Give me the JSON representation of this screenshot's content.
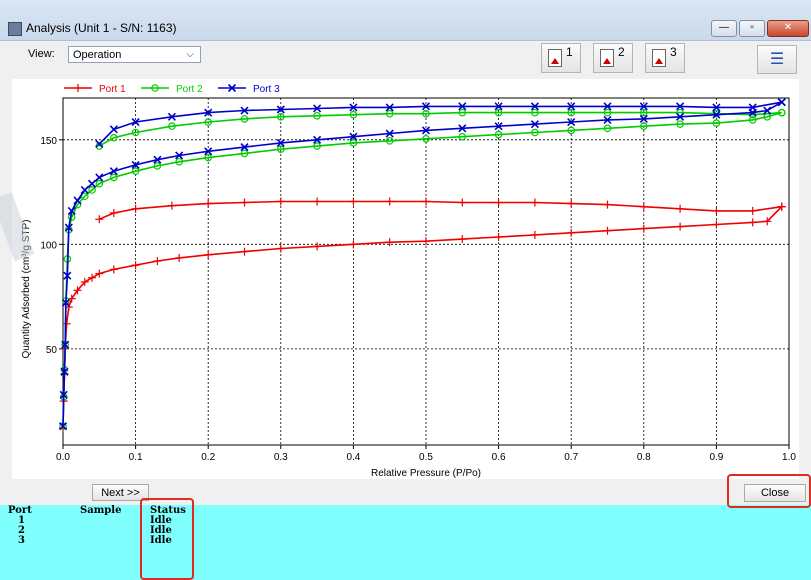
{
  "window": {
    "title": "Analysis (Unit 1 - S/N: 1163)"
  },
  "toolbar": {
    "view_label": "View:",
    "view_value": "Operation",
    "report_buttons": [
      "1",
      "2",
      "3"
    ]
  },
  "buttons": {
    "next": "Next >>",
    "close": "Close"
  },
  "status_table": {
    "headers": {
      "port": "Port",
      "sample": "Sample",
      "status": "Status"
    },
    "rows": [
      {
        "port": "1",
        "sample": "",
        "status": "Idle"
      },
      {
        "port": "2",
        "sample": "",
        "status": "Idle"
      },
      {
        "port": "3",
        "sample": "",
        "status": "Idle"
      }
    ]
  },
  "chart_data": {
    "type": "line",
    "xlabel": "Relative Pressure (P/Po)",
    "ylabel": "Quantity Adsorbed (cm³/g STP)",
    "xlim": [
      0,
      1.0
    ],
    "ylim": [
      4,
      170
    ],
    "xticks": [
      "0.0",
      "0.1",
      "0.2",
      "0.3",
      "0.4",
      "0.5",
      "0.6",
      "0.7",
      "0.8",
      "0.9",
      "1.0"
    ],
    "yticks": [
      50,
      100,
      150
    ],
    "grid": true,
    "legend": "top-left",
    "series": [
      {
        "name": "Port 1",
        "color": "#ee0000",
        "marker": "plus",
        "adsorption": [
          [
            0.0,
            12
          ],
          [
            0.001,
            25
          ],
          [
            0.002,
            38
          ],
          [
            0.003,
            50
          ],
          [
            0.005,
            62
          ],
          [
            0.008,
            70
          ],
          [
            0.012,
            74
          ],
          [
            0.02,
            78
          ],
          [
            0.03,
            82
          ],
          [
            0.04,
            84
          ],
          [
            0.05,
            86
          ],
          [
            0.07,
            88
          ],
          [
            0.1,
            90
          ],
          [
            0.13,
            92
          ],
          [
            0.16,
            93.5
          ],
          [
            0.2,
            95
          ],
          [
            0.25,
            96.5
          ],
          [
            0.3,
            98
          ],
          [
            0.35,
            99
          ],
          [
            0.4,
            100
          ],
          [
            0.45,
            101
          ],
          [
            0.5,
            101.5
          ],
          [
            0.55,
            102.5
          ],
          [
            0.6,
            103.5
          ],
          [
            0.65,
            104.5
          ],
          [
            0.7,
            105.5
          ],
          [
            0.75,
            106.5
          ],
          [
            0.8,
            107.5
          ],
          [
            0.85,
            108.5
          ],
          [
            0.9,
            109.5
          ],
          [
            0.95,
            110.5
          ],
          [
            0.97,
            111
          ],
          [
            0.99,
            118
          ]
        ],
        "desorption": [
          [
            0.99,
            118
          ],
          [
            0.95,
            116
          ],
          [
            0.9,
            116
          ],
          [
            0.85,
            117
          ],
          [
            0.8,
            118
          ],
          [
            0.75,
            119
          ],
          [
            0.7,
            119.5
          ],
          [
            0.65,
            120
          ],
          [
            0.6,
            120
          ],
          [
            0.55,
            120
          ],
          [
            0.5,
            120.5
          ],
          [
            0.45,
            120.5
          ],
          [
            0.4,
            120.5
          ],
          [
            0.35,
            120.5
          ],
          [
            0.3,
            120.5
          ],
          [
            0.25,
            120
          ],
          [
            0.2,
            119.5
          ],
          [
            0.15,
            118.5
          ],
          [
            0.1,
            117
          ],
          [
            0.07,
            115
          ],
          [
            0.05,
            112
          ]
        ]
      },
      {
        "name": "Port 2",
        "color": "#00cc00",
        "marker": "circle",
        "adsorption": [
          [
            0.0,
            13
          ],
          [
            0.001,
            27
          ],
          [
            0.002,
            40
          ],
          [
            0.003,
            52
          ],
          [
            0.004,
            73
          ],
          [
            0.006,
            93
          ],
          [
            0.008,
            107
          ],
          [
            0.012,
            113
          ],
          [
            0.02,
            119
          ],
          [
            0.03,
            123
          ],
          [
            0.04,
            126
          ],
          [
            0.05,
            129
          ],
          [
            0.07,
            132
          ],
          [
            0.1,
            135
          ],
          [
            0.13,
            137.5
          ],
          [
            0.16,
            139.5
          ],
          [
            0.2,
            141.5
          ],
          [
            0.25,
            143.5
          ],
          [
            0.3,
            145.5
          ],
          [
            0.35,
            147
          ],
          [
            0.4,
            148.5
          ],
          [
            0.45,
            149.5
          ],
          [
            0.5,
            150.5
          ],
          [
            0.55,
            151.5
          ],
          [
            0.6,
            152.5
          ],
          [
            0.65,
            153.5
          ],
          [
            0.7,
            154.5
          ],
          [
            0.75,
            155.5
          ],
          [
            0.8,
            156.5
          ],
          [
            0.85,
            157.5
          ],
          [
            0.9,
            158
          ],
          [
            0.95,
            159.5
          ],
          [
            0.97,
            161
          ],
          [
            0.99,
            163
          ]
        ],
        "desorption": [
          [
            0.99,
            163
          ],
          [
            0.95,
            162
          ],
          [
            0.9,
            162.5
          ],
          [
            0.85,
            163
          ],
          [
            0.8,
            163
          ],
          [
            0.75,
            163
          ],
          [
            0.7,
            163
          ],
          [
            0.65,
            163
          ],
          [
            0.6,
            163
          ],
          [
            0.55,
            163
          ],
          [
            0.5,
            162.5
          ],
          [
            0.45,
            162.5
          ],
          [
            0.4,
            162
          ],
          [
            0.35,
            161.5
          ],
          [
            0.3,
            161
          ],
          [
            0.25,
            160
          ],
          [
            0.2,
            158.5
          ],
          [
            0.15,
            156.5
          ],
          [
            0.1,
            153.5
          ],
          [
            0.07,
            151
          ],
          [
            0.05,
            147
          ]
        ]
      },
      {
        "name": "Port 3",
        "color": "#0000cc",
        "marker": "x",
        "adsorption": [
          [
            0.0,
            13
          ],
          [
            0.001,
            28
          ],
          [
            0.002,
            39
          ],
          [
            0.003,
            52
          ],
          [
            0.004,
            72
          ],
          [
            0.006,
            85
          ],
          [
            0.008,
            108
          ],
          [
            0.012,
            116
          ],
          [
            0.02,
            121
          ],
          [
            0.03,
            126
          ],
          [
            0.04,
            129
          ],
          [
            0.05,
            132
          ],
          [
            0.07,
            135
          ],
          [
            0.1,
            138
          ],
          [
            0.13,
            140.5
          ],
          [
            0.16,
            142.5
          ],
          [
            0.2,
            144.5
          ],
          [
            0.25,
            146.5
          ],
          [
            0.3,
            148.5
          ],
          [
            0.35,
            150
          ],
          [
            0.4,
            151.5
          ],
          [
            0.45,
            153
          ],
          [
            0.5,
            154.5
          ],
          [
            0.55,
            155.5
          ],
          [
            0.6,
            156.5
          ],
          [
            0.65,
            157.5
          ],
          [
            0.7,
            158.5
          ],
          [
            0.75,
            159.5
          ],
          [
            0.8,
            160
          ],
          [
            0.85,
            161
          ],
          [
            0.9,
            162
          ],
          [
            0.95,
            163
          ],
          [
            0.97,
            164
          ],
          [
            0.99,
            168
          ]
        ],
        "desorption": [
          [
            0.99,
            168
          ],
          [
            0.95,
            165.5
          ],
          [
            0.9,
            165.5
          ],
          [
            0.85,
            166
          ],
          [
            0.8,
            166
          ],
          [
            0.75,
            166
          ],
          [
            0.7,
            166
          ],
          [
            0.65,
            166
          ],
          [
            0.6,
            166
          ],
          [
            0.55,
            166
          ],
          [
            0.5,
            166
          ],
          [
            0.45,
            165.5
          ],
          [
            0.4,
            165.5
          ],
          [
            0.35,
            165
          ],
          [
            0.3,
            164.5
          ],
          [
            0.25,
            164
          ],
          [
            0.2,
            163
          ],
          [
            0.15,
            161
          ],
          [
            0.1,
            158.5
          ],
          [
            0.07,
            155
          ],
          [
            0.05,
            148
          ]
        ]
      }
    ]
  }
}
